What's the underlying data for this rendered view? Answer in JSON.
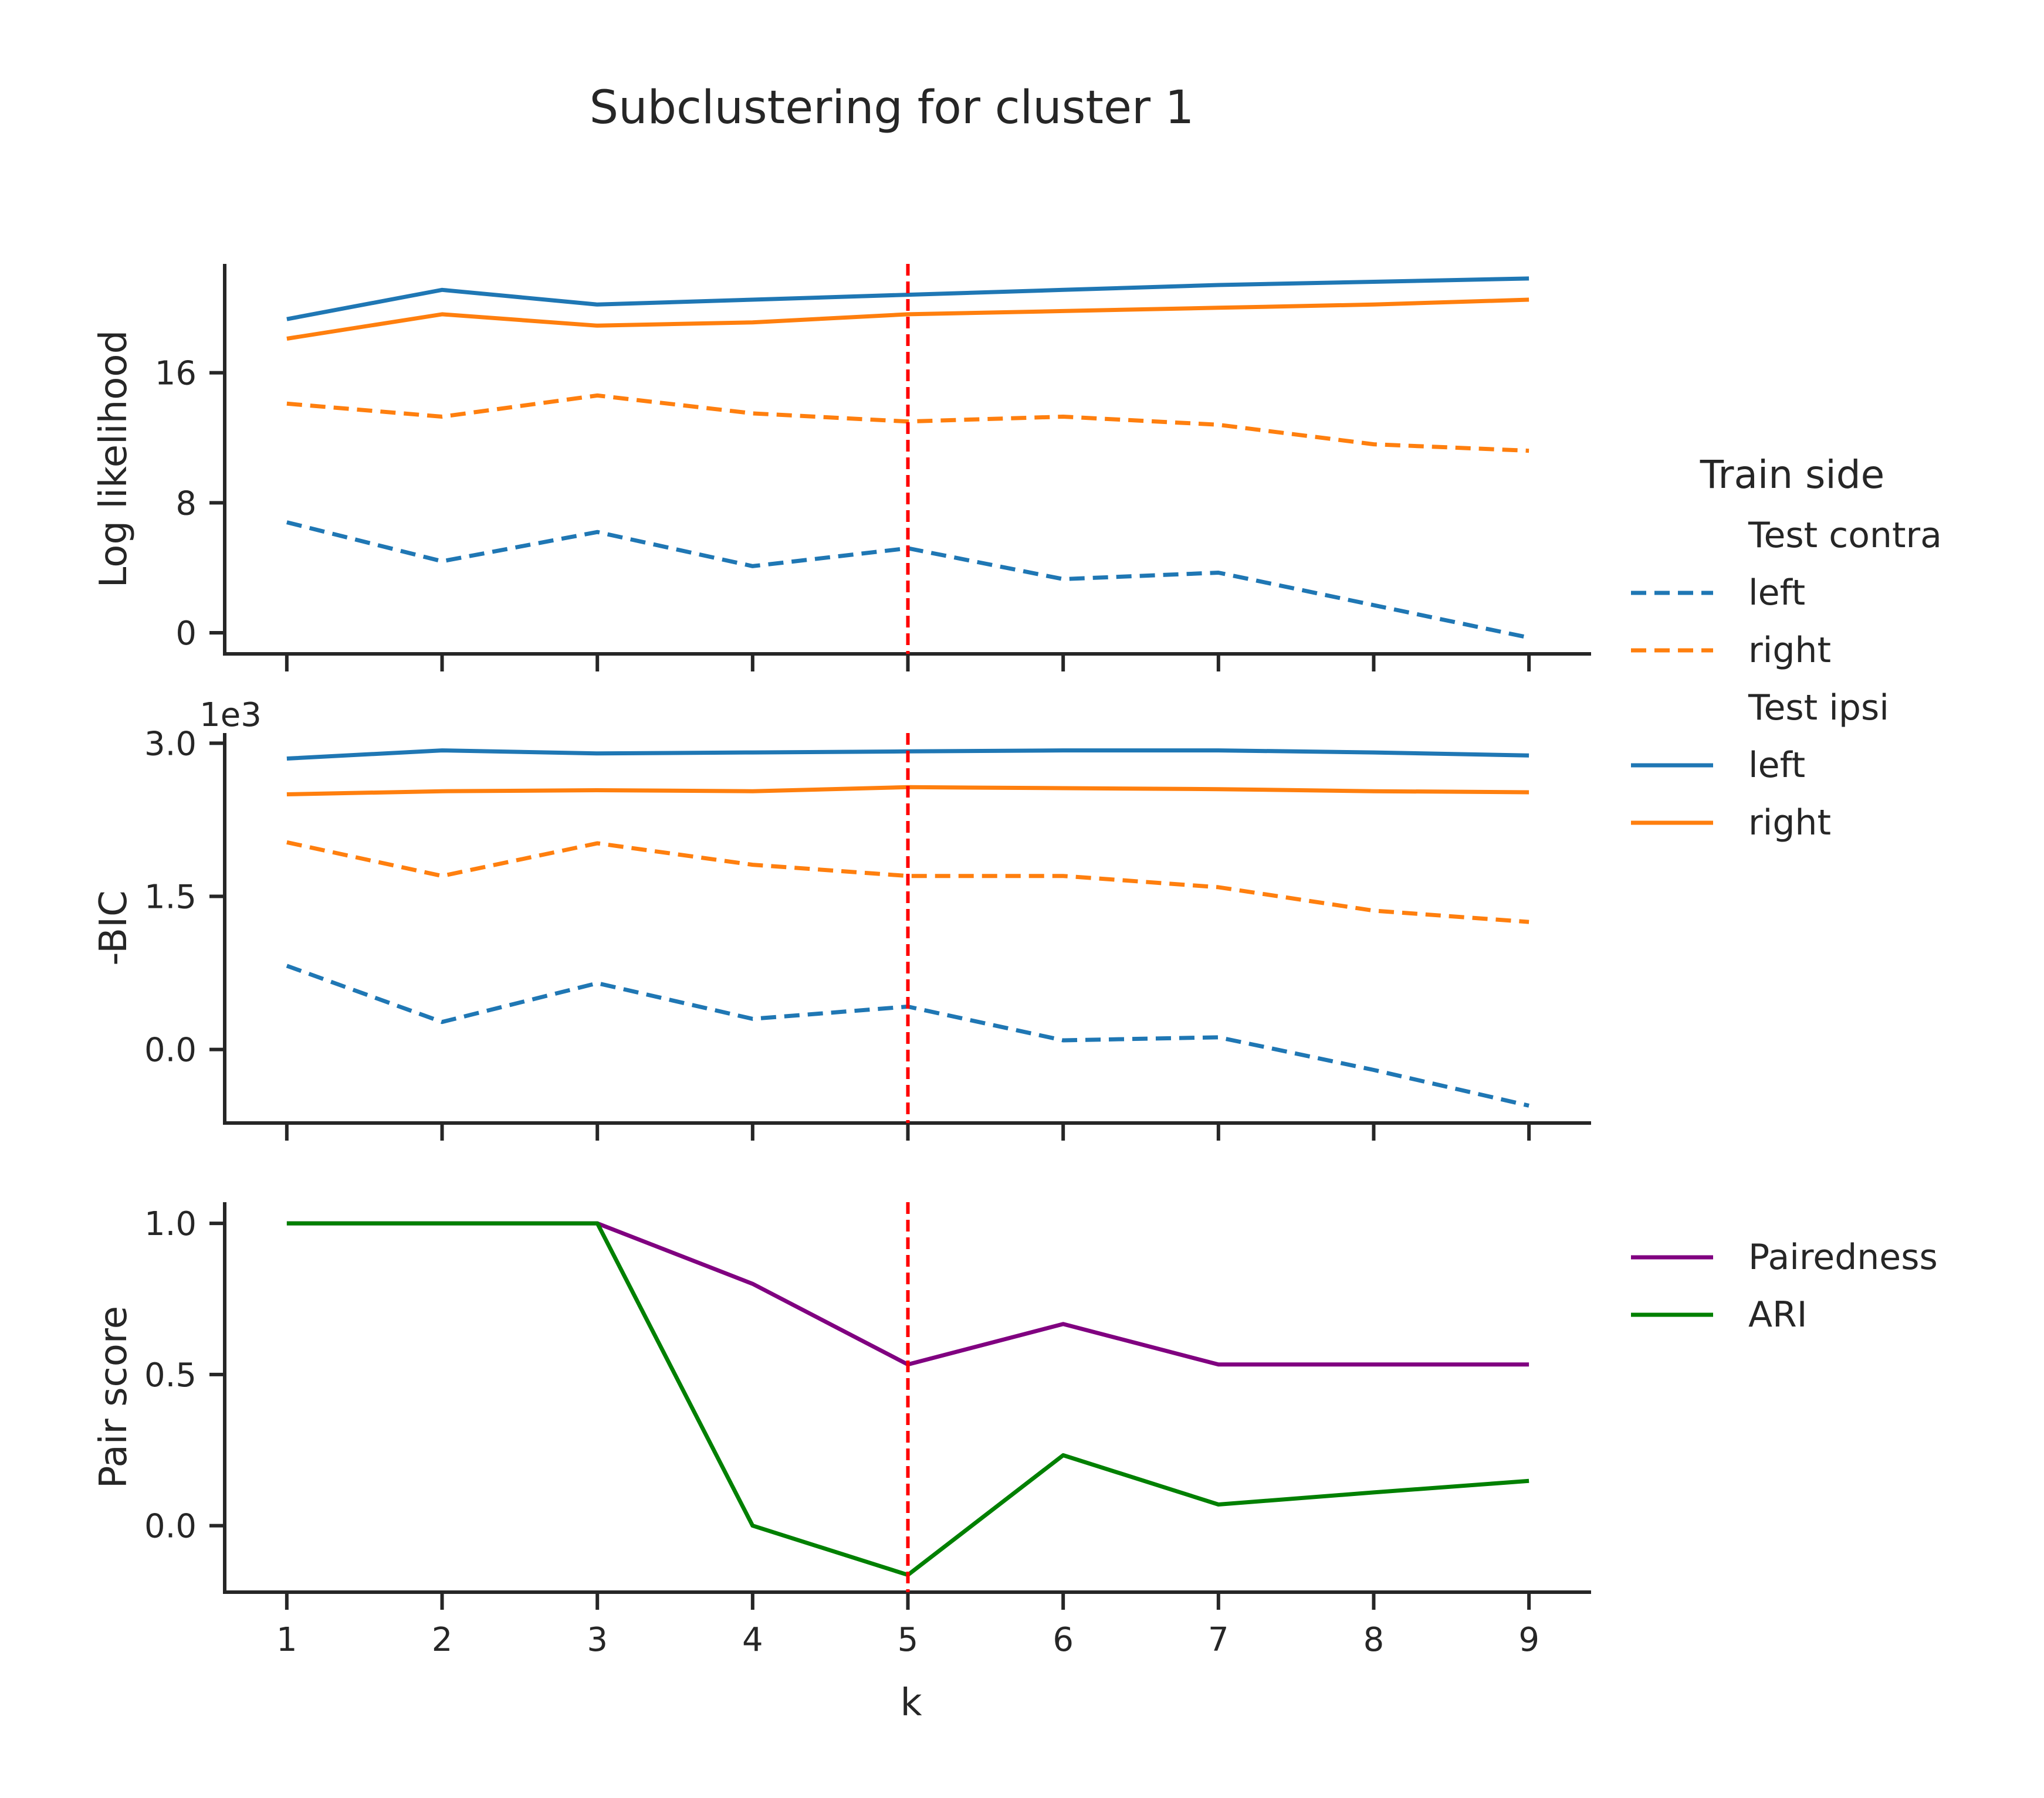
{
  "figure": {
    "title": "Subclustering for cluster 1",
    "xlabel": "k",
    "colors": {
      "blue": "#1f77b4",
      "orange": "#ff7f0e",
      "purple": "#800080",
      "green": "#008000",
      "marker": "#ff0000",
      "axis": "#262626"
    }
  },
  "legend_top": {
    "title": "Train side",
    "groups": [
      {
        "heading": "Test contra",
        "items": [
          {
            "label": "left",
            "color": "#1f77b4",
            "style": "dashed"
          },
          {
            "label": "right",
            "color": "#ff7f0e",
            "style": "dashed"
          }
        ]
      },
      {
        "heading": "Test ipsi",
        "items": [
          {
            "label": "left",
            "color": "#1f77b4",
            "style": "solid"
          },
          {
            "label": "right",
            "color": "#ff7f0e",
            "style": "solid"
          }
        ]
      }
    ]
  },
  "legend_bottom": {
    "items": [
      {
        "label": "Pairedness",
        "color": "#800080"
      },
      {
        "label": "ARI",
        "color": "#008000"
      }
    ]
  },
  "chart_data": [
    {
      "type": "line",
      "ylabel": "Log likelihood",
      "x": [
        1,
        2,
        3,
        4,
        5,
        6,
        7,
        8,
        9
      ],
      "xlim": [
        0.6,
        9.4
      ],
      "ylim": [
        -1.3,
        22.7
      ],
      "yticks": [
        0,
        8,
        16
      ],
      "ytick_labels": [
        "0",
        "8",
        "16"
      ],
      "vline_x": 5,
      "series": [
        {
          "name": "left",
          "group": "Test contra",
          "style": "dashed",
          "color": "#1f77b4",
          "values": [
            6.8,
            4.4,
            6.2,
            4.1,
            5.2,
            3.3,
            3.7,
            1.7,
            -0.3
          ]
        },
        {
          "name": "right",
          "group": "Test contra",
          "style": "dashed",
          "color": "#ff7f0e",
          "values": [
            14.1,
            13.3,
            14.6,
            13.5,
            13.0,
            13.3,
            12.8,
            11.6,
            11.2
          ]
        },
        {
          "name": "left",
          "group": "Test ipsi",
          "style": "solid",
          "color": "#1f77b4",
          "values": [
            19.3,
            21.1,
            20.2,
            20.5,
            20.8,
            21.1,
            21.4,
            21.6,
            21.8
          ]
        },
        {
          "name": "right",
          "group": "Test ipsi",
          "style": "solid",
          "color": "#ff7f0e",
          "values": [
            18.1,
            19.6,
            18.9,
            19.1,
            19.6,
            19.8,
            20.0,
            20.2,
            20.5
          ]
        }
      ]
    },
    {
      "type": "line",
      "ylabel": "-BIC",
      "scale_label": "1e3",
      "x": [
        1,
        2,
        3,
        4,
        5,
        6,
        7,
        8,
        9
      ],
      "xlim": [
        0.6,
        9.4
      ],
      "ylim": [
        -0.72,
        3.1
      ],
      "yticks": [
        0.0,
        1.5,
        3.0
      ],
      "ytick_labels": [
        "0.0",
        "1.5",
        "3.0"
      ],
      "vline_x": 5,
      "series": [
        {
          "name": "left",
          "group": "Test contra",
          "style": "dashed",
          "color": "#1f77b4",
          "values": [
            0.82,
            0.27,
            0.65,
            0.3,
            0.42,
            0.09,
            0.12,
            -0.2,
            -0.55
          ]
        },
        {
          "name": "right",
          "group": "Test contra",
          "style": "dashed",
          "color": "#ff7f0e",
          "values": [
            2.03,
            1.7,
            2.02,
            1.81,
            1.7,
            1.7,
            1.59,
            1.36,
            1.25
          ]
        },
        {
          "name": "left",
          "group": "Test ipsi",
          "style": "solid",
          "color": "#1f77b4",
          "values": [
            2.85,
            2.93,
            2.9,
            2.91,
            2.92,
            2.93,
            2.93,
            2.91,
            2.88
          ]
        },
        {
          "name": "right",
          "group": "Test ipsi",
          "style": "solid",
          "color": "#ff7f0e",
          "values": [
            2.5,
            2.53,
            2.54,
            2.53,
            2.57,
            2.56,
            2.55,
            2.53,
            2.52
          ]
        }
      ]
    },
    {
      "type": "line",
      "ylabel": "Pair score",
      "xlabel": "k",
      "x": [
        1,
        2,
        3,
        4,
        5,
        6,
        7,
        8,
        9
      ],
      "xtick_labels": [
        "1",
        "2",
        "3",
        "4",
        "5",
        "6",
        "7",
        "8",
        "9"
      ],
      "xlim": [
        0.6,
        9.4
      ],
      "ylim": [
        -0.22,
        1.07
      ],
      "yticks": [
        0.0,
        0.5,
        1.0
      ],
      "ytick_labels": [
        "0.0",
        "0.5",
        "1.0"
      ],
      "vline_x": 5,
      "series": [
        {
          "name": "Pairedness",
          "style": "solid",
          "color": "#800080",
          "values": [
            1.0,
            1.0,
            1.0,
            0.8,
            0.533,
            0.667,
            0.533,
            0.533,
            0.533
          ]
        },
        {
          "name": "ARI",
          "style": "solid",
          "color": "#008000",
          "values": [
            1.0,
            1.0,
            1.0,
            0.0,
            -0.163,
            0.233,
            0.07,
            0.11,
            0.148
          ]
        }
      ]
    }
  ]
}
